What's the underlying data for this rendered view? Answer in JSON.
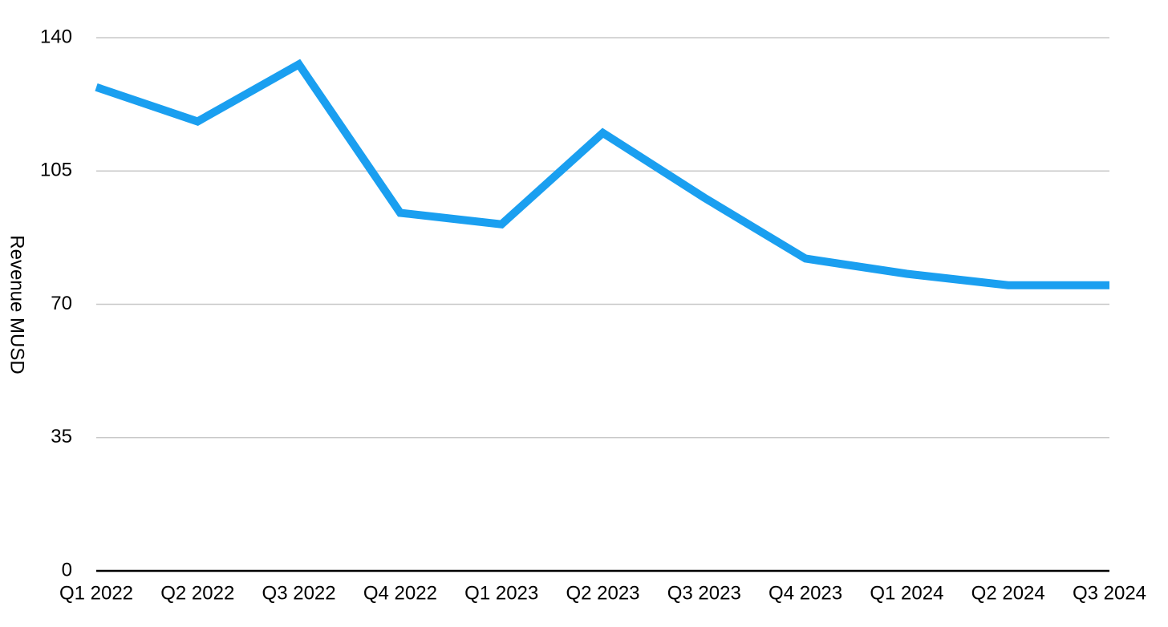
{
  "chart_data": {
    "type": "line",
    "y_label": "Revenue MUSD",
    "categories": [
      "Q1 2022",
      "Q2 2022",
      "Q3 2022",
      "Q4 2022",
      "Q1 2023",
      "Q2 2023",
      "Q3 2023",
      "Q4 2023",
      "Q1 2024",
      "Q2 2024",
      "Q3 2024"
    ],
    "values": [
      127,
      118,
      133,
      94,
      91,
      115,
      98,
      82,
      78,
      75,
      75
    ],
    "color": "#1a9ff0",
    "ylim": [
      0,
      140
    ],
    "yticks": [
      0,
      35,
      70,
      105,
      140
    ],
    "grid": true
  }
}
